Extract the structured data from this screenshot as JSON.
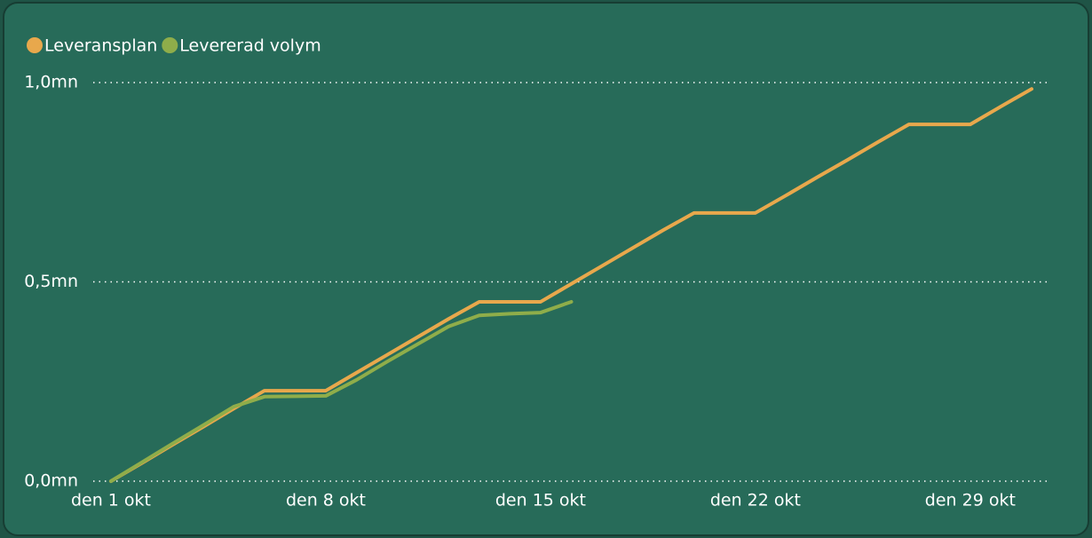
{
  "chart_data": {
    "type": "line",
    "x": [
      1,
      2,
      3,
      4,
      5,
      6,
      7,
      8,
      9,
      10,
      11,
      12,
      13,
      14,
      15,
      16,
      17,
      18,
      19,
      20,
      21,
      22,
      23,
      24,
      25,
      26,
      27,
      28,
      29,
      30,
      31
    ],
    "xlim": [
      1,
      31
    ],
    "xticks": [
      {
        "value": 1,
        "label": "den 1 okt"
      },
      {
        "value": 8,
        "label": "den 8 okt"
      },
      {
        "value": 15,
        "label": "den 15 okt"
      },
      {
        "value": 22,
        "label": "den 22 okt"
      },
      {
        "value": 29,
        "label": "den 29 okt"
      }
    ],
    "ylim": [
      0,
      1
    ],
    "yticks": [
      {
        "value": 0,
        "label": "0,0mn"
      },
      {
        "value": 0.5,
        "label": "0,5mn"
      },
      {
        "value": 1,
        "label": "1,0mn"
      }
    ],
    "grid": true,
    "legend": "top-left",
    "series": [
      {
        "name": "Leveransplan",
        "color": "#e8a84c",
        "values": [
          0,
          0.045,
          0.091,
          0.136,
          0.182,
          0.227,
          0.227,
          0.227,
          0.272,
          0.317,
          0.362,
          0.407,
          0.45,
          0.45,
          0.45,
          0.495,
          0.54,
          0.585,
          0.63,
          0.673,
          0.673,
          0.673,
          0.717,
          0.762,
          0.806,
          0.851,
          0.895,
          0.895,
          0.895,
          0.94,
          0.984
        ]
      },
      {
        "name": "Levererad volym",
        "color": "#8fad4a",
        "values": [
          0,
          0.047,
          0.094,
          0.14,
          0.187,
          0.212,
          0.213,
          0.214,
          0.254,
          0.3,
          0.344,
          0.388,
          0.416,
          0.42,
          0.423,
          0.45,
          null,
          null,
          null,
          null,
          null,
          null,
          null,
          null,
          null,
          null,
          null,
          null,
          null,
          null,
          null
        ]
      }
    ]
  }
}
